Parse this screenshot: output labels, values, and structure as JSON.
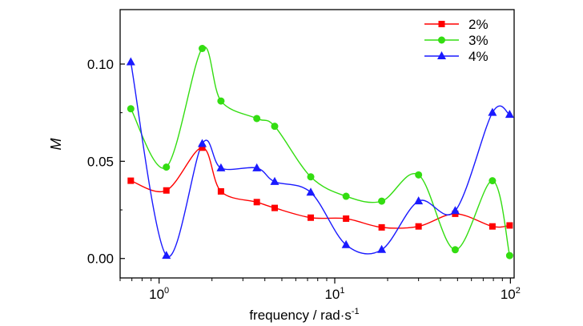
{
  "chart_data": {
    "type": "line",
    "xlabel": "frequency / rad·s",
    "xlabel_superscript": "-1",
    "ylabel": "M",
    "xscale": "log",
    "xlim": [
      0.6,
      105
    ],
    "ylim": [
      -0.01,
      0.128
    ],
    "x_ticks": [
      {
        "value": 1,
        "base": "10",
        "exp": "0"
      },
      {
        "value": 10,
        "base": "10",
        "exp": "1"
      },
      {
        "value": 100,
        "base": "10",
        "exp": "2"
      }
    ],
    "y_ticks": [
      {
        "value": 0.0,
        "label": "0.00"
      },
      {
        "value": 0.05,
        "label": "0.05"
      },
      {
        "value": 0.1,
        "label": "0.10"
      }
    ],
    "grid": false,
    "legend_position": "top-right",
    "x": [
      0.69,
      1.1,
      1.76,
      2.25,
      3.6,
      4.55,
      7.3,
      11.6,
      18.5,
      30.0,
      48.5,
      79.0,
      99.0
    ],
    "series": [
      {
        "name": "2%",
        "color": "#ff0000",
        "marker": "square",
        "values": [
          0.04,
          0.035,
          0.057,
          0.0345,
          0.029,
          0.026,
          0.021,
          0.0205,
          0.016,
          0.0165,
          0.023,
          0.0165,
          0.017
        ]
      },
      {
        "name": "3%",
        "color": "#33dd11",
        "marker": "circle",
        "values": [
          0.077,
          0.047,
          0.108,
          0.081,
          0.072,
          0.068,
          0.042,
          0.032,
          0.0295,
          0.043,
          0.0045,
          0.04,
          0.0015
        ]
      },
      {
        "name": "4%",
        "color": "#1a1aff",
        "marker": "triangle",
        "values": [
          0.101,
          0.0015,
          0.059,
          0.0465,
          0.0465,
          0.0395,
          0.034,
          0.007,
          0.0045,
          0.0295,
          0.0245,
          0.075,
          0.074
        ]
      }
    ]
  }
}
